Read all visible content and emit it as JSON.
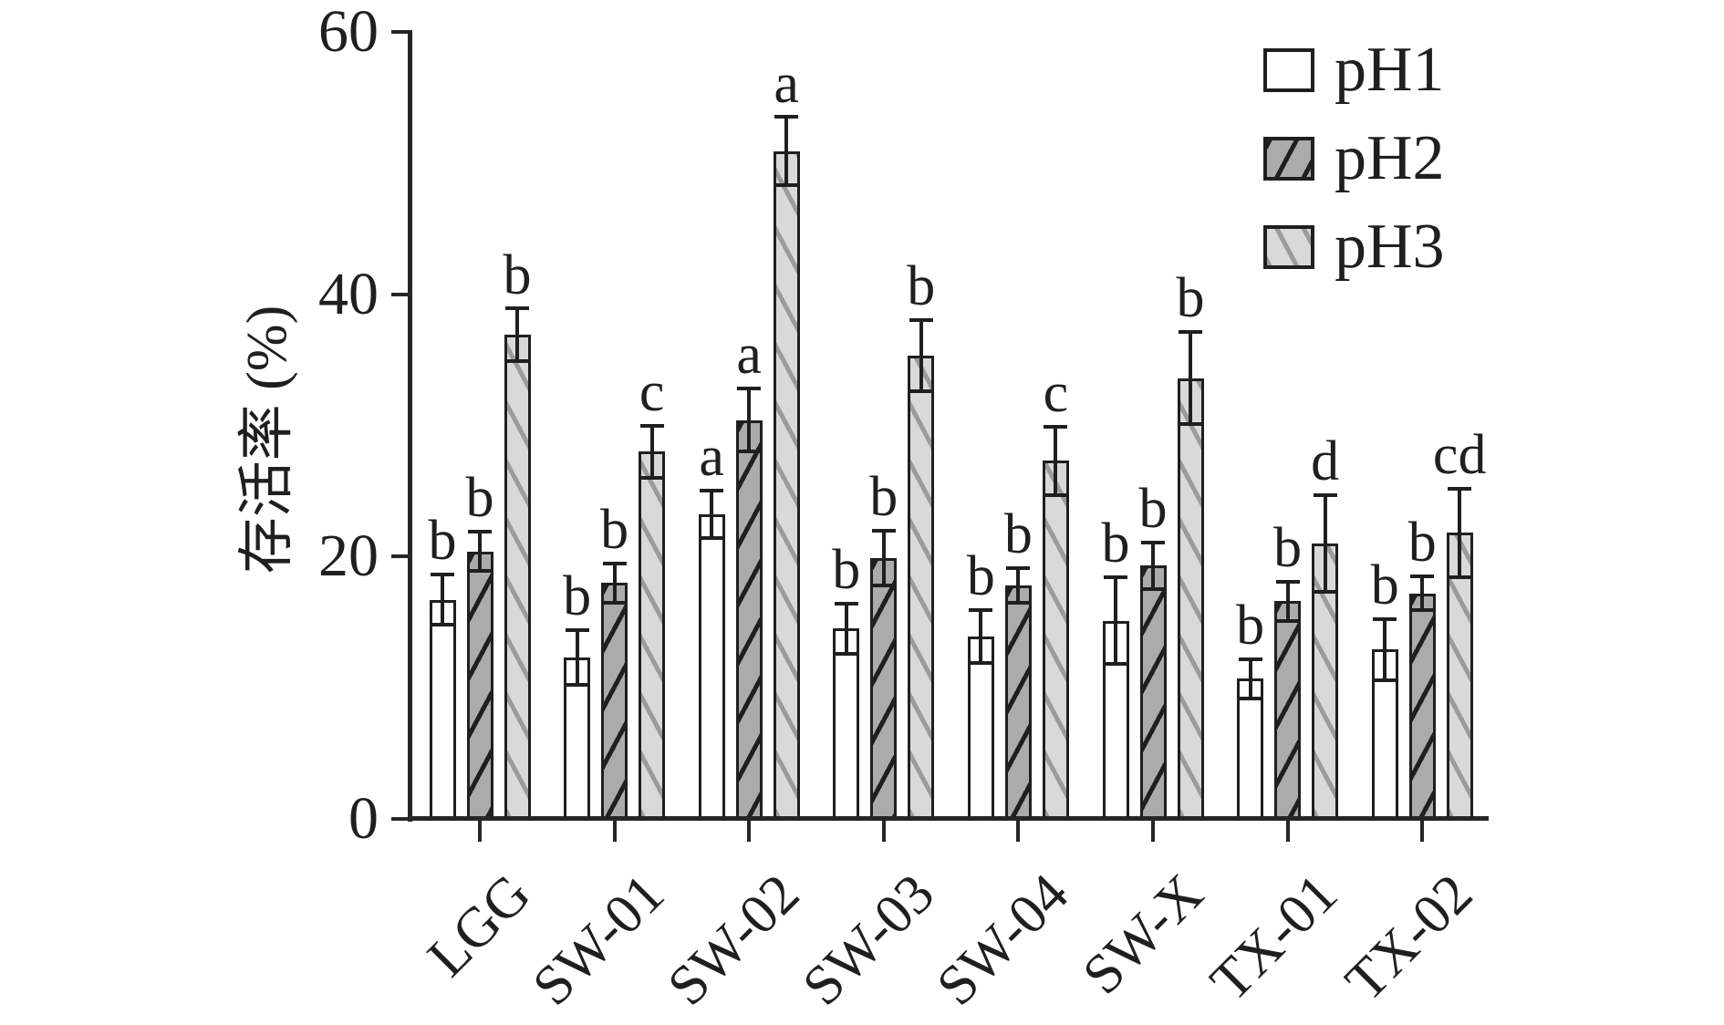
{
  "figure": {
    "background": "#ffffff",
    "foreground": "#1f1f1f"
  },
  "chart_data": {
    "type": "bar",
    "title": "",
    "xlabel": "",
    "ylabel": "存活率 (%)",
    "ylim": [
      0,
      60
    ],
    "yticks": [
      0,
      20,
      40,
      60
    ],
    "grid": false,
    "legend_position": "top-right",
    "categories": [
      "LGG",
      "SW-01",
      "SW-02",
      "SW-03",
      "SW-04",
      "SW-X",
      "TX-01",
      "TX-02"
    ],
    "series": [
      {
        "name": "pH1",
        "values": [
          16.7,
          12.3,
          23.2,
          14.5,
          13.9,
          15.1,
          10.7,
          12.9
        ],
        "errors": [
          1.9,
          2.1,
          1.8,
          1.9,
          2.0,
          3.3,
          1.5,
          2.3
        ]
      },
      {
        "name": "pH2",
        "values": [
          20.4,
          18.0,
          30.4,
          19.9,
          17.8,
          19.3,
          16.6,
          17.2
        ],
        "errors": [
          1.5,
          1.5,
          2.4,
          2.1,
          1.3,
          1.8,
          1.5,
          1.3
        ]
      },
      {
        "name": "pH3",
        "values": [
          36.9,
          28.0,
          50.9,
          35.3,
          27.3,
          33.6,
          21.0,
          21.8
        ],
        "errors": [
          2.0,
          2.0,
          2.6,
          2.7,
          2.6,
          3.5,
          3.7,
          3.4
        ]
      }
    ],
    "sig_letters": [
      [
        "b",
        "b",
        "b"
      ],
      [
        "b",
        "b",
        "c"
      ],
      [
        "a",
        "a",
        "a"
      ],
      [
        "b",
        "b",
        "b"
      ],
      [
        "b",
        "b",
        "c"
      ],
      [
        "b",
        "b",
        "b"
      ],
      [
        "b",
        "b",
        "d"
      ],
      [
        "b",
        "b",
        "cd"
      ]
    ],
    "colors": {
      "stroke": "#1f1f1f",
      "ph1_fill": "#ffffff",
      "ph2_fill": "#ababab",
      "ph2_hatch": "#1f1f1f",
      "ph2_hatch_dir": "/",
      "ph3_fill": "#d9d9d9",
      "ph3_hatch": "#9b9b9b",
      "ph3_hatch_dir": "\\"
    }
  }
}
